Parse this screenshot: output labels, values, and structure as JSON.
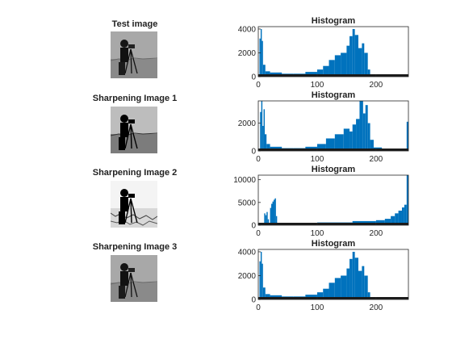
{
  "colors": {
    "bar": "#0072BD",
    "axis": "#262626",
    "strip": "#1a1a1a"
  },
  "images": [
    {
      "title": "Test image",
      "style": "normal"
    },
    {
      "title": "Sharpening Image 1",
      "style": "sharp"
    },
    {
      "title": "Sharpening Image 2",
      "style": "bright"
    },
    {
      "title": "Sharpening Image 3",
      "style": "normal"
    }
  ],
  "chart_data": [
    {
      "type": "bar",
      "title": "Histogram",
      "xlim": [
        0,
        255
      ],
      "ylim": [
        0,
        4200
      ],
      "xticks": [
        0,
        100,
        200
      ],
      "yticks": [
        0,
        2000,
        4000
      ],
      "segments": [
        {
          "x0": 0,
          "x1": 2,
          "y": 0
        },
        {
          "x0": 2,
          "x1": 4,
          "y": 3200
        },
        {
          "x0": 4,
          "x1": 6,
          "y": 4000
        },
        {
          "x0": 6,
          "x1": 8,
          "y": 3000
        },
        {
          "x0": 8,
          "x1": 12,
          "y": 1000
        },
        {
          "x0": 12,
          "x1": 20,
          "y": 450
        },
        {
          "x0": 20,
          "x1": 40,
          "y": 350
        },
        {
          "x0": 40,
          "x1": 60,
          "y": 250
        },
        {
          "x0": 60,
          "x1": 80,
          "y": 250
        },
        {
          "x0": 80,
          "x1": 100,
          "y": 400
        },
        {
          "x0": 100,
          "x1": 110,
          "y": 600
        },
        {
          "x0": 110,
          "x1": 120,
          "y": 900
        },
        {
          "x0": 120,
          "x1": 130,
          "y": 1400
        },
        {
          "x0": 130,
          "x1": 140,
          "y": 1800
        },
        {
          "x0": 140,
          "x1": 150,
          "y": 2000
        },
        {
          "x0": 150,
          "x1": 155,
          "y": 2600
        },
        {
          "x0": 155,
          "x1": 160,
          "y": 3400
        },
        {
          "x0": 160,
          "x1": 164,
          "y": 4000
        },
        {
          "x0": 164,
          "x1": 170,
          "y": 3500
        },
        {
          "x0": 170,
          "x1": 176,
          "y": 2400
        },
        {
          "x0": 176,
          "x1": 180,
          "y": 2800
        },
        {
          "x0": 180,
          "x1": 186,
          "y": 2000
        },
        {
          "x0": 186,
          "x1": 190,
          "y": 600
        },
        {
          "x0": 190,
          "x1": 200,
          "y": 150
        },
        {
          "x0": 200,
          "x1": 255,
          "y": 60
        }
      ]
    },
    {
      "type": "bar",
      "title": "Histogram",
      "xlim": [
        0,
        255
      ],
      "ylim": [
        0,
        3600
      ],
      "xticks": [
        0,
        100,
        200
      ],
      "yticks": [
        0,
        2000
      ],
      "segments": [
        {
          "x0": 0,
          "x1": 3,
          "y": 0
        },
        {
          "x0": 3,
          "x1": 5,
          "y": 2800
        },
        {
          "x0": 5,
          "x1": 7,
          "y": 3600
        },
        {
          "x0": 7,
          "x1": 9,
          "y": 1800
        },
        {
          "x0": 9,
          "x1": 11,
          "y": 3000
        },
        {
          "x0": 11,
          "x1": 14,
          "y": 1200
        },
        {
          "x0": 14,
          "x1": 20,
          "y": 500
        },
        {
          "x0": 20,
          "x1": 40,
          "y": 300
        },
        {
          "x0": 40,
          "x1": 60,
          "y": 200
        },
        {
          "x0": 60,
          "x1": 80,
          "y": 200
        },
        {
          "x0": 80,
          "x1": 100,
          "y": 300
        },
        {
          "x0": 100,
          "x1": 115,
          "y": 500
        },
        {
          "x0": 115,
          "x1": 130,
          "y": 900
        },
        {
          "x0": 130,
          "x1": 145,
          "y": 1200
        },
        {
          "x0": 145,
          "x1": 155,
          "y": 1600
        },
        {
          "x0": 155,
          "x1": 160,
          "y": 1400
        },
        {
          "x0": 160,
          "x1": 166,
          "y": 1900
        },
        {
          "x0": 166,
          "x1": 172,
          "y": 2300
        },
        {
          "x0": 172,
          "x1": 178,
          "y": 3600
        },
        {
          "x0": 178,
          "x1": 182,
          "y": 2700
        },
        {
          "x0": 182,
          "x1": 186,
          "y": 3300
        },
        {
          "x0": 186,
          "x1": 190,
          "y": 2000
        },
        {
          "x0": 190,
          "x1": 196,
          "y": 800
        },
        {
          "x0": 196,
          "x1": 210,
          "y": 250
        },
        {
          "x0": 210,
          "x1": 240,
          "y": 80
        },
        {
          "x0": 240,
          "x1": 252,
          "y": 80
        },
        {
          "x0": 252,
          "x1": 255,
          "y": 2100
        }
      ]
    },
    {
      "type": "bar",
      "title": "Histogram",
      "xlim": [
        0,
        255
      ],
      "ylim": [
        0,
        11000
      ],
      "xticks": [
        0,
        100,
        200
      ],
      "yticks": [
        0,
        5000,
        10000
      ],
      "segments": [
        {
          "x0": 0,
          "x1": 10,
          "y": 0
        },
        {
          "x0": 10,
          "x1": 12,
          "y": 2600
        },
        {
          "x0": 12,
          "x1": 14,
          "y": 2200
        },
        {
          "x0": 14,
          "x1": 16,
          "y": 2900
        },
        {
          "x0": 16,
          "x1": 18,
          "y": 1300
        },
        {
          "x0": 18,
          "x1": 20,
          "y": 500
        },
        {
          "x0": 20,
          "x1": 22,
          "y": 3800
        },
        {
          "x0": 22,
          "x1": 24,
          "y": 4700
        },
        {
          "x0": 24,
          "x1": 26,
          "y": 5200
        },
        {
          "x0": 26,
          "x1": 28,
          "y": 5600
        },
        {
          "x0": 28,
          "x1": 30,
          "y": 5900
        },
        {
          "x0": 30,
          "x1": 32,
          "y": 2000
        },
        {
          "x0": 32,
          "x1": 40,
          "y": 300
        },
        {
          "x0": 40,
          "x1": 100,
          "y": 200
        },
        {
          "x0": 100,
          "x1": 160,
          "y": 600
        },
        {
          "x0": 160,
          "x1": 200,
          "y": 900
        },
        {
          "x0": 200,
          "x1": 215,
          "y": 1100
        },
        {
          "x0": 215,
          "x1": 225,
          "y": 1400
        },
        {
          "x0": 225,
          "x1": 232,
          "y": 2000
        },
        {
          "x0": 232,
          "x1": 238,
          "y": 2600
        },
        {
          "x0": 238,
          "x1": 244,
          "y": 3200
        },
        {
          "x0": 244,
          "x1": 248,
          "y": 3900
        },
        {
          "x0": 248,
          "x1": 252,
          "y": 4500
        },
        {
          "x0": 252,
          "x1": 255,
          "y": 11000
        }
      ]
    },
    {
      "type": "bar",
      "title": "Histogram",
      "xlim": [
        0,
        255
      ],
      "ylim": [
        0,
        4200
      ],
      "xticks": [
        0,
        100,
        200
      ],
      "yticks": [
        0,
        2000,
        4000
      ],
      "segments": [
        {
          "x0": 0,
          "x1": 2,
          "y": 0
        },
        {
          "x0": 2,
          "x1": 4,
          "y": 3200
        },
        {
          "x0": 4,
          "x1": 6,
          "y": 4000
        },
        {
          "x0": 6,
          "x1": 8,
          "y": 3000
        },
        {
          "x0": 8,
          "x1": 12,
          "y": 1000
        },
        {
          "x0": 12,
          "x1": 20,
          "y": 450
        },
        {
          "x0": 20,
          "x1": 40,
          "y": 350
        },
        {
          "x0": 40,
          "x1": 60,
          "y": 250
        },
        {
          "x0": 60,
          "x1": 80,
          "y": 250
        },
        {
          "x0": 80,
          "x1": 100,
          "y": 400
        },
        {
          "x0": 100,
          "x1": 110,
          "y": 600
        },
        {
          "x0": 110,
          "x1": 120,
          "y": 900
        },
        {
          "x0": 120,
          "x1": 130,
          "y": 1400
        },
        {
          "x0": 130,
          "x1": 140,
          "y": 1800
        },
        {
          "x0": 140,
          "x1": 150,
          "y": 2000
        },
        {
          "x0": 150,
          "x1": 155,
          "y": 2600
        },
        {
          "x0": 155,
          "x1": 160,
          "y": 3400
        },
        {
          "x0": 160,
          "x1": 164,
          "y": 4000
        },
        {
          "x0": 164,
          "x1": 170,
          "y": 3500
        },
        {
          "x0": 170,
          "x1": 176,
          "y": 2400
        },
        {
          "x0": 176,
          "x1": 180,
          "y": 2800
        },
        {
          "x0": 180,
          "x1": 186,
          "y": 2000
        },
        {
          "x0": 186,
          "x1": 190,
          "y": 600
        },
        {
          "x0": 190,
          "x1": 200,
          "y": 150
        },
        {
          "x0": 200,
          "x1": 255,
          "y": 60
        }
      ]
    }
  ]
}
